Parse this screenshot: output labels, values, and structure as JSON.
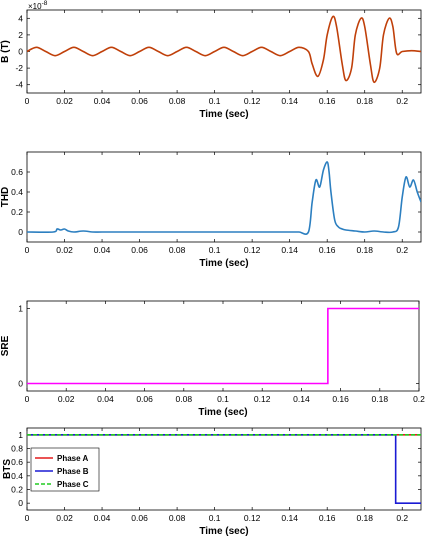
{
  "chart_data": [
    {
      "type": "line",
      "ylabel": "B (T)",
      "xlabel": "Time (sec)",
      "y_exponent_label": "×10",
      "y_exponent_power": "-8",
      "xlim": [
        0,
        0.21
      ],
      "ylim": [
        -5,
        5
      ],
      "xticks": [
        "0",
        "0.02",
        "0.04",
        "0.06",
        "0.08",
        "0.1",
        "0.12",
        "0.14",
        "0.16",
        "0.18",
        "0.2"
      ],
      "yticks": [
        "-4",
        "-2",
        "0",
        "2",
        "4"
      ],
      "grid": false,
      "color": "#c0400a",
      "series": [
        {
          "x": [
            0,
            0.005,
            0.01,
            0.015,
            0.02,
            0.025,
            0.03,
            0.035,
            0.04,
            0.045,
            0.05,
            0.055,
            0.06,
            0.065,
            0.07,
            0.075,
            0.08,
            0.085,
            0.09,
            0.095,
            0.1,
            0.105,
            0.11,
            0.115,
            0.12,
            0.125,
            0.13,
            0.135,
            0.14,
            0.145,
            0.15,
            0.152,
            0.155,
            0.158,
            0.16,
            0.163,
            0.165,
            0.168,
            0.17,
            0.173,
            0.175,
            0.178,
            0.18,
            0.183,
            0.185,
            0.188,
            0.19,
            0.193,
            0.195,
            0.197,
            0.2,
            0.205,
            0.21
          ],
          "y": [
            0,
            0.5,
            0,
            -0.5,
            0,
            0.5,
            0,
            -0.5,
            0,
            0.5,
            0,
            -0.5,
            0,
            0.5,
            0,
            -0.5,
            0,
            0.5,
            0,
            -0.5,
            0,
            0.5,
            0,
            -0.5,
            0,
            0.5,
            0,
            -0.5,
            0,
            0.5,
            0,
            -1.5,
            -3,
            -1,
            2,
            4.2,
            3,
            -1.5,
            -3.5,
            -2,
            2,
            4,
            3,
            -1.5,
            -3.7,
            -2,
            2,
            4,
            3,
            -0.2,
            0,
            0.1,
            0
          ]
        }
      ]
    },
    {
      "type": "line",
      "ylabel": "THD",
      "xlabel": "Time (sec)",
      "xlim": [
        0,
        0.21
      ],
      "ylim": [
        -0.1,
        0.8
      ],
      "xticks": [
        "0",
        "0.02",
        "0.04",
        "0.06",
        "0.08",
        "0.1",
        "0.12",
        "0.14",
        "0.16",
        "0.18",
        "0.2"
      ],
      "yticks": [
        "0",
        "0.2",
        "0.4",
        "0.6"
      ],
      "grid": false,
      "color": "#2c7fc0",
      "series": [
        {
          "x": [
            0,
            0.014,
            0.016,
            0.018,
            0.02,
            0.022,
            0.025,
            0.03,
            0.035,
            0.04,
            0.05,
            0.06,
            0.07,
            0.08,
            0.09,
            0.1,
            0.11,
            0.12,
            0.13,
            0.14,
            0.145,
            0.15,
            0.152,
            0.154,
            0.156,
            0.158,
            0.16,
            0.161,
            0.162,
            0.164,
            0.166,
            0.168,
            0.17,
            0.175,
            0.18,
            0.185,
            0.19,
            0.195,
            0.198,
            0.2,
            0.202,
            0.204,
            0.206,
            0.208,
            0.21
          ],
          "y": [
            0,
            0,
            0.03,
            0.02,
            0.03,
            0.01,
            0,
            0.01,
            0,
            0,
            0,
            0,
            0,
            0,
            0,
            0,
            0,
            0,
            0,
            0,
            0,
            0,
            0.3,
            0.52,
            0.45,
            0.62,
            0.7,
            0.6,
            0.4,
            0.12,
            0.05,
            0.03,
            0.02,
            0.01,
            0,
            0.01,
            0,
            0,
            0.05,
            0.35,
            0.55,
            0.45,
            0.52,
            0.4,
            0.3
          ]
        }
      ]
    },
    {
      "type": "line",
      "ylabel": "SRE",
      "xlabel": "Time (sec)",
      "xlim": [
        0,
        0.2
      ],
      "ylim": [
        -0.1,
        1.1
      ],
      "xticks": [
        "0",
        "0.02",
        "0.04",
        "0.06",
        "0.08",
        "0.1",
        "0.12",
        "0.14",
        "0.16",
        "0.18",
        "0.2"
      ],
      "yticks": [
        "0",
        "1"
      ],
      "grid": false,
      "color": "#ff00ff",
      "series": [
        {
          "x": [
            0,
            0.1535,
            0.1535,
            0.2
          ],
          "y": [
            0,
            0,
            1,
            1
          ]
        }
      ]
    },
    {
      "type": "line",
      "ylabel": "BTS",
      "xlabel": "Time (sec)",
      "xlim": [
        0,
        0.21
      ],
      "ylim": [
        -0.1,
        1.1
      ],
      "xticks": [
        "0",
        "0.02",
        "0.04",
        "0.06",
        "0.08",
        "0.1",
        "0.12",
        "0.14",
        "0.16",
        "0.18",
        "0.2"
      ],
      "yticks": [
        "0",
        "0.2",
        "0.4",
        "0.6",
        "0.8",
        "1"
      ],
      "grid": false,
      "legend": "top-left",
      "series": [
        {
          "name": "Phase A",
          "color": "#e41a1c",
          "style": "solid",
          "x": [
            0,
            0.21
          ],
          "y": [
            1,
            1
          ]
        },
        {
          "name": "Phase B",
          "color": "#1a1ad4",
          "style": "solid",
          "x": [
            0,
            0.1965,
            0.1965,
            0.21
          ],
          "y": [
            1,
            1,
            0,
            0
          ]
        },
        {
          "name": "Phase C",
          "color": "#22cc22",
          "style": "dashed",
          "x": [
            0,
            0.21
          ],
          "y": [
            1,
            1
          ]
        }
      ]
    }
  ]
}
